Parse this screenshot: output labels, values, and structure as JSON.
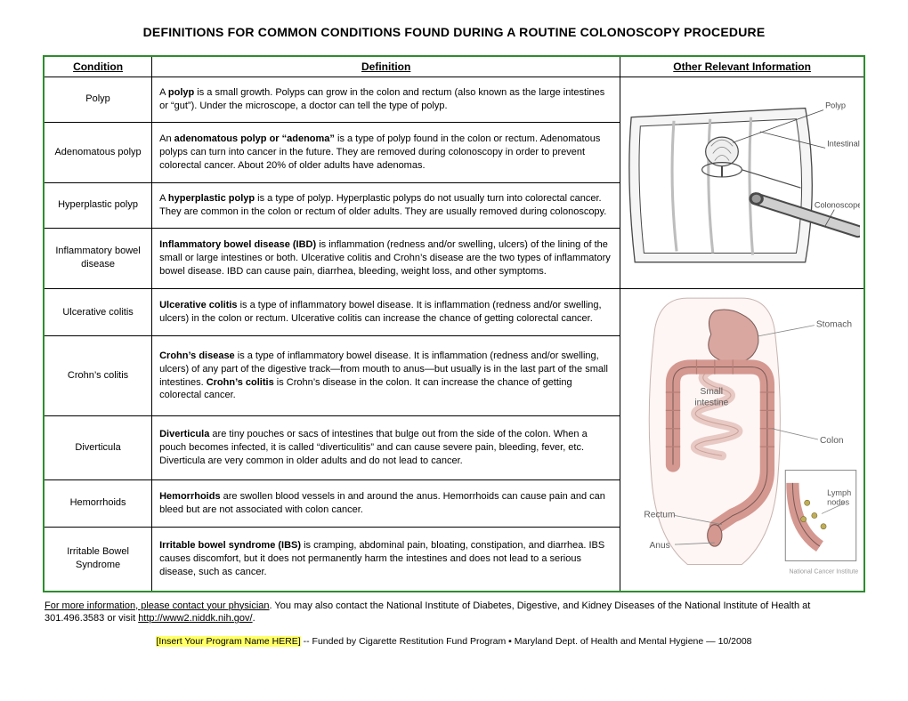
{
  "title": "DEFINITIONS FOR COMMON CONDITIONS FOUND DURING A ROUTINE COLONOSCOPY PROCEDURE",
  "headers": {
    "c1": "Condition",
    "c2": "Definition",
    "c3": "Other Relevant Information"
  },
  "rows": [
    {
      "cond": "Polyp",
      "def": "A <b>polyp</b> is a small growth.  Polyps can grow in the colon and rectum (also known as the large intestines or “gut”).  Under the microscope, a doctor can tell the type of polyp."
    },
    {
      "cond": "Adenomatous polyp",
      "def": "An <b>adenomatous polyp or “adenoma”</b> is a type of polyp found in the colon or rectum.  Adenomatous polyps can turn into cancer in the future.  They are removed during colonoscopy in order to prevent colorectal cancer. About 20% of older adults have adenomas."
    },
    {
      "cond": "Hyperplastic polyp",
      "def": "A <b>hyperplastic polyp</b> is a type of polyp.  Hyperplastic polyps do not usually turn into colorectal cancer.  They are common in the colon or rectum of older adults.  They are usually removed during colonoscopy."
    },
    {
      "cond": "Inflammatory bowel disease",
      "def": "<b>Inflammatory bowel disease (IBD)</b> is inflammation (redness and/or swelling, ulcers) of the lining of the small or large intestines or both.  Ulcerative colitis and Crohn’s disease are the two types of inflammatory bowel disease.  IBD can cause pain, diarrhea, bleeding, weight loss, and other symptoms."
    },
    {
      "cond": "Ulcerative colitis",
      "def": "<b>Ulcerative colitis</b> is a type of inflammatory bowel disease.  It is inflammation (redness and/or swelling, ulcers) in the colon or rectum.  Ulcerative colitis can increase the chance of getting colorectal cancer."
    },
    {
      "cond": "Crohn’s colitis",
      "def": "<b>Crohn’s disease</b> is a type of inflammatory bowel disease.  It is inflammation (redness and/or swelling, ulcers) of any part of the digestive track—from mouth to anus—but usually is in the last part of the small intestines.  <b>Crohn’s colitis</b> is Crohn’s disease in the colon.  It can increase the chance of getting colorectal cancer."
    },
    {
      "cond": "Diverticula",
      "def": "<b>Diverticula</b> are tiny pouches or sacs of intestines that bulge out from the side of the colon.  When a pouch becomes infected, it is called “diverticulitis” and can cause severe pain, bleeding, fever, etc.  Diverticula are very common in older adults and do not lead to cancer."
    },
    {
      "cond": "Hemorrhoids",
      "def": "<b>Hemorrhoids</b> are swollen blood vessels in and around the anus. Hemorrhoids can cause pain and can bleed but are not associated with colon cancer."
    },
    {
      "cond": "Irritable Bowel Syndrome",
      "def": "<b>Irritable bowel syndrome (IBS)</b> is cramping, abdominal pain, bloating, constipation, and diarrhea.  IBS causes discomfort, but it does not permanently harm the intestines and does not lead to a serious disease, such as cancer."
    }
  ],
  "footer1_lead": "For more information, please contact your physician",
  "footer1_rest": ".  You may also contact the National Institute of Diabetes, Digestive, and Kidney Diseases of the National Institute of Health at 301.496.3583 or visit ",
  "footer1_link": "http://www2.niddk.nih.gov/",
  "footer2_hl": "[Insert Your Program Name HERE]",
  "footer2_rest": " -- Funded by Cigarette Restitution Fund Program ▪ Maryland Dept. of Health and Mental Hygiene — 10/2008",
  "fig1": {
    "labels": {
      "polyp": "Polyp",
      "folds": "Intestinal folds",
      "scope": "Colonoscope"
    },
    "colors": {
      "line": "#4a4a4a",
      "fill": "#f5f5f5",
      "wall": "#d9d9d9"
    }
  },
  "fig2": {
    "labels": {
      "stomach": "Stomach",
      "small": "Small intestine",
      "colon": "Colon",
      "rectum": "Rectum",
      "anus": "Anus",
      "lymph": "Lymph nodes",
      "credit": "National Cancer Institute"
    },
    "colors": {
      "stomach": "#d9a7a0",
      "small": "#e8c9c4",
      "colon": "#d49890",
      "outline": "#7a5a56",
      "bg": "#ffffff",
      "inset_border": "#888888",
      "text": "#5a5a5a"
    }
  }
}
